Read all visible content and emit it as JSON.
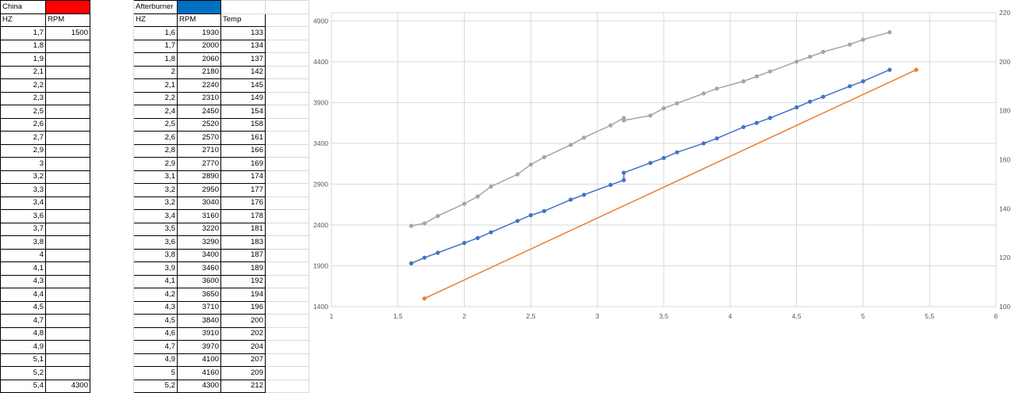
{
  "table_china": {
    "name": "China",
    "swatch": "#ff0000",
    "headers": [
      "HZ",
      "RPM"
    ],
    "rows": [
      [
        "1,7",
        "1500"
      ],
      [
        "1,8",
        ""
      ],
      [
        "1,9",
        ""
      ],
      [
        "2,1",
        ""
      ],
      [
        "2,2",
        ""
      ],
      [
        "2,3",
        ""
      ],
      [
        "2,5",
        ""
      ],
      [
        "2,6",
        ""
      ],
      [
        "2,7",
        ""
      ],
      [
        "2,9",
        ""
      ],
      [
        "3",
        ""
      ],
      [
        "3,2",
        ""
      ],
      [
        "3,3",
        ""
      ],
      [
        "3,4",
        ""
      ],
      [
        "3,6",
        ""
      ],
      [
        "3,7",
        ""
      ],
      [
        "3,8",
        ""
      ],
      [
        "4",
        ""
      ],
      [
        "4,1",
        ""
      ],
      [
        "4,3",
        ""
      ],
      [
        "4,4",
        ""
      ],
      [
        "4,5",
        ""
      ],
      [
        "4,7",
        ""
      ],
      [
        "4,8",
        ""
      ],
      [
        "4,9",
        ""
      ],
      [
        "5,1",
        ""
      ],
      [
        "5,2",
        ""
      ],
      [
        "5,4",
        "4300"
      ]
    ]
  },
  "table_afterburner": {
    "name": "Afterburner",
    "swatch": "#0070c0",
    "headers": [
      "HZ",
      "RPM",
      "Temp"
    ],
    "rows": [
      [
        "1,6",
        "1930",
        "133"
      ],
      [
        "1,7",
        "2000",
        "134"
      ],
      [
        "1,8",
        "2060",
        "137"
      ],
      [
        "2",
        "2180",
        "142"
      ],
      [
        "2,1",
        "2240",
        "145"
      ],
      [
        "2,2",
        "2310",
        "149"
      ],
      [
        "2,4",
        "2450",
        "154"
      ],
      [
        "2,5",
        "2520",
        "158"
      ],
      [
        "2,6",
        "2570",
        "161"
      ],
      [
        "2,8",
        "2710",
        "166"
      ],
      [
        "2,9",
        "2770",
        "169"
      ],
      [
        "3,1",
        "2890",
        "174"
      ],
      [
        "3,2",
        "2950",
        "177"
      ],
      [
        "3,2",
        "3040",
        "176"
      ],
      [
        "3,4",
        "3160",
        "178"
      ],
      [
        "3,5",
        "3220",
        "181"
      ],
      [
        "3,6",
        "3290",
        "183"
      ],
      [
        "3,8",
        "3400",
        "187"
      ],
      [
        "3,9",
        "3460",
        "189"
      ],
      [
        "4,1",
        "3600",
        "192"
      ],
      [
        "4,2",
        "3650",
        "194"
      ],
      [
        "4,3",
        "3710",
        "196"
      ],
      [
        "4,5",
        "3840",
        "200"
      ],
      [
        "4,6",
        "3910",
        "202"
      ],
      [
        "4,7",
        "3970",
        "204"
      ],
      [
        "4,9",
        "4100",
        "207"
      ],
      [
        "5",
        "4160",
        "209"
      ],
      [
        "5,2",
        "4300",
        "212"
      ]
    ]
  },
  "chart_data": {
    "type": "line",
    "title": "",
    "xlabel": "",
    "ylabel": "",
    "xlim": [
      1,
      6
    ],
    "ylim": [
      1400,
      5000
    ],
    "y2lim": [
      100,
      220
    ],
    "x_ticks": [
      "1",
      "1,5",
      "2",
      "2,5",
      "3",
      "3,5",
      "4",
      "4,5",
      "5",
      "5,5",
      "6"
    ],
    "y_ticks": [
      "1400",
      "1900",
      "2400",
      "2900",
      "3400",
      "3900",
      "4400",
      "4900"
    ],
    "y2_ticks": [
      "100",
      "120",
      "140",
      "160",
      "180",
      "200",
      "220"
    ],
    "grid": "vertical-and-horizontal",
    "legend": "none",
    "series": [
      {
        "axis": "right",
        "color": "#a5a5a5",
        "x": [
          1.6,
          1.7,
          1.8,
          2,
          2.1,
          2.2,
          2.4,
          2.5,
          2.6,
          2.8,
          2.9,
          3.1,
          3.2,
          3.2,
          3.4,
          3.5,
          3.6,
          3.8,
          3.9,
          4.1,
          4.2,
          4.3,
          4.5,
          4.6,
          4.7,
          4.9,
          5,
          5.2
        ],
        "y": [
          133,
          134,
          137,
          142,
          145,
          149,
          154,
          158,
          161,
          166,
          169,
          174,
          177,
          176,
          178,
          181,
          183,
          187,
          189,
          192,
          194,
          196,
          200,
          202,
          204,
          207,
          209,
          212
        ]
      },
      {
        "axis": "left",
        "color": "#4472c4",
        "x": [
          1.6,
          1.7,
          1.8,
          2,
          2.1,
          2.2,
          2.4,
          2.5,
          2.6,
          2.8,
          2.9,
          3.1,
          3.2,
          3.2,
          3.4,
          3.5,
          3.6,
          3.8,
          3.9,
          4.1,
          4.2,
          4.3,
          4.5,
          4.6,
          4.7,
          4.9,
          5,
          5.2
        ],
        "y": [
          1930,
          2000,
          2060,
          2180,
          2240,
          2310,
          2450,
          2520,
          2570,
          2710,
          2770,
          2890,
          2950,
          3040,
          3160,
          3220,
          3290,
          3400,
          3460,
          3600,
          3650,
          3710,
          3840,
          3910,
          3970,
          4100,
          4160,
          4300
        ]
      },
      {
        "axis": "left",
        "color": "#ed7d31",
        "x": [
          1.7,
          5.4
        ],
        "y": [
          1500,
          4300
        ]
      }
    ]
  }
}
